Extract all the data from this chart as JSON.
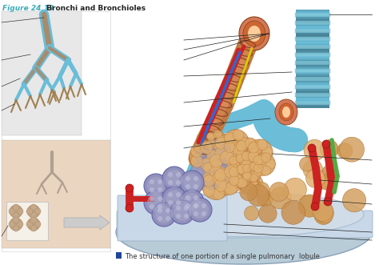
{
  "title_label": "Figure 24.13",
  "title_bold": " Bronchi and Bronchioles",
  "title_color_label": "#3aacb8",
  "title_color_bold": "#222222",
  "caption_icon_color": "#224499",
  "caption_text": "The structure of one portion of a single pulmonary  lobule",
  "caption_fontsize": 6.0,
  "title_fontsize": 6.5,
  "bg_color": "#ffffff",
  "fig_width": 4.74,
  "fig_height": 3.31,
  "dpi": 100,
  "colors": {
    "blue_bronchus": "#6bbdd8",
    "blue_bronchus_dark": "#4a9ab8",
    "blue_bronchus_light": "#a0d8ee",
    "red_artery": "#cc2222",
    "red_artery_dark": "#991111",
    "brown_bronchus": "#c07840",
    "brown_bronchus_dark": "#8b4513",
    "purple_alveoli": "#8888bb",
    "purple_alveoli_light": "#aaaacc",
    "purple_alveoli_dark": "#6666aa",
    "green_vessel": "#55aa44",
    "beige_tissue": "#d4a870",
    "beige_tissue_dark": "#b08040",
    "platform_blue": "#b8ccd8",
    "platform_rim": "#8aa0b8",
    "platform_inner": "#d0dce8",
    "white_bg": "#ffffff",
    "left_bg": "#f5f5f5",
    "upper_box_bg": "#e8e8e8",
    "lower_box_bg": "#e8ddd0",
    "annotation": "#111111"
  }
}
